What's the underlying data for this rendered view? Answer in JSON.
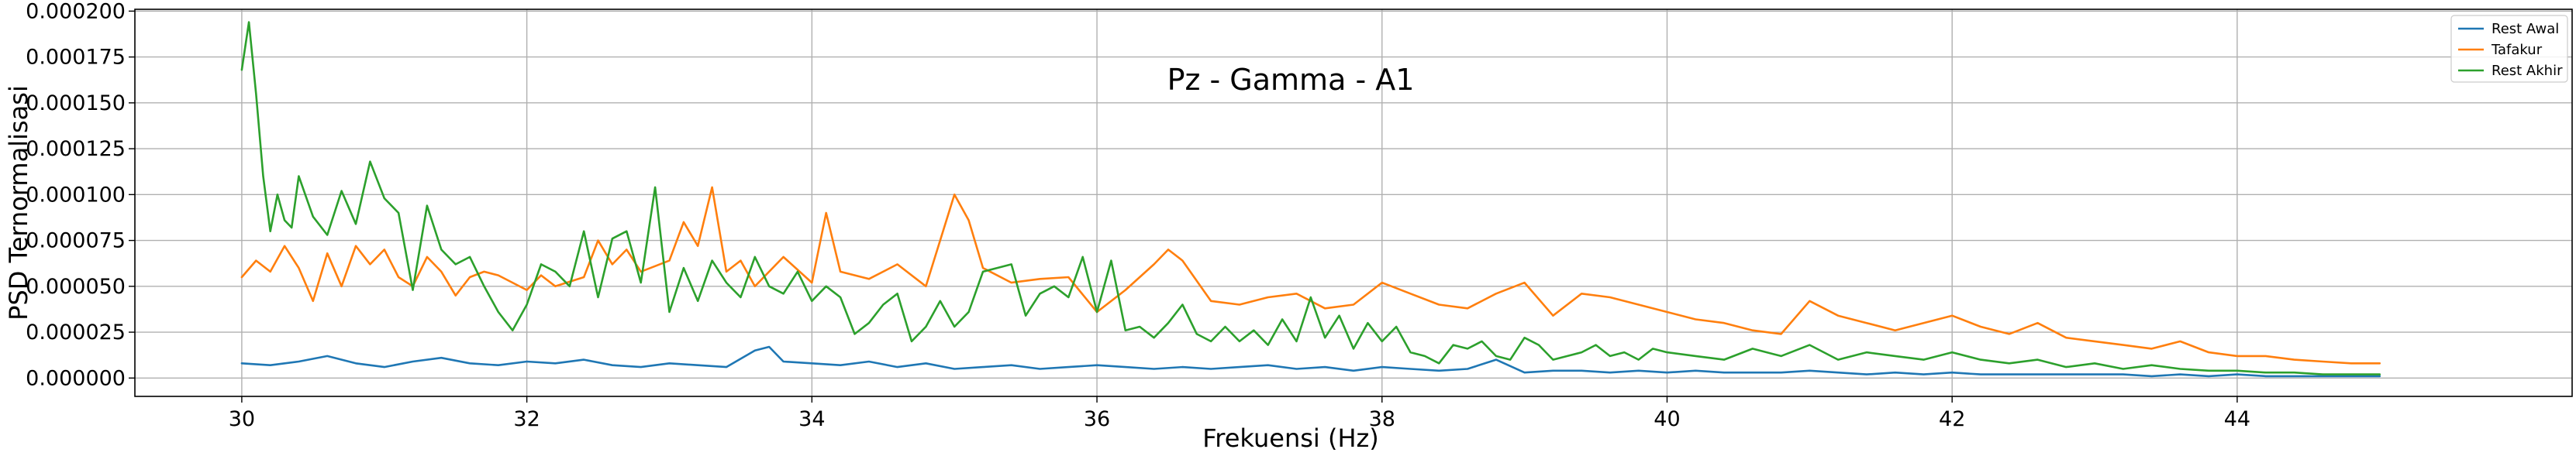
{
  "chart_data": {
    "type": "line",
    "title": "Pz - Gamma - A1",
    "xlabel": "Frekuensi (Hz)",
    "ylabel": "PSD Ternormalisasi",
    "xlim": [
      29.25,
      46.35
    ],
    "ylim": [
      -1e-05,
      0.000201
    ],
    "xticks": [
      30,
      32,
      34,
      36,
      38,
      40,
      42,
      44
    ],
    "xtick_labels": [
      "30",
      "32",
      "34",
      "36",
      "38",
      "40",
      "42",
      "44"
    ],
    "yticks": [
      0,
      2.5e-05,
      5e-05,
      7.5e-05,
      0.0001,
      0.000125,
      0.00015,
      0.000175,
      0.0002
    ],
    "ytick_labels": [
      "0.000000",
      "0.000025",
      "0.000050",
      "0.000075",
      "0.000100",
      "0.000125",
      "0.000150",
      "0.000175",
      "0.000200"
    ],
    "grid": true,
    "legend_position": "top-right",
    "series": [
      {
        "name": "Rest Awal",
        "color": "#1f77b4",
        "x": [
          30.0,
          30.2,
          30.4,
          30.6,
          30.8,
          31.0,
          31.2,
          31.4,
          31.6,
          31.8,
          32.0,
          32.2,
          32.4,
          32.6,
          32.8,
          33.0,
          33.2,
          33.4,
          33.6,
          33.7,
          33.8,
          34.0,
          34.2,
          34.4,
          34.6,
          34.8,
          35.0,
          35.2,
          35.4,
          35.6,
          35.8,
          36.0,
          36.2,
          36.4,
          36.6,
          36.8,
          37.0,
          37.2,
          37.4,
          37.6,
          37.8,
          38.0,
          38.2,
          38.4,
          38.6,
          38.8,
          39.0,
          39.2,
          39.4,
          39.6,
          39.8,
          40.0,
          40.2,
          40.4,
          40.6,
          40.8,
          41.0,
          41.2,
          41.4,
          41.6,
          41.8,
          42.0,
          42.2,
          42.4,
          42.6,
          42.8,
          43.0,
          43.2,
          43.4,
          43.6,
          43.8,
          44.0,
          44.2,
          44.4,
          44.6,
          44.8,
          45.0
        ],
        "y": [
          8e-06,
          7e-06,
          9e-06,
          1.2e-05,
          8e-06,
          6e-06,
          9e-06,
          1.1e-05,
          8e-06,
          7e-06,
          9e-06,
          8e-06,
          1e-05,
          7e-06,
          6e-06,
          8e-06,
          7e-06,
          6e-06,
          1.5e-05,
          1.7e-05,
          9e-06,
          8e-06,
          7e-06,
          9e-06,
          6e-06,
          8e-06,
          5e-06,
          6e-06,
          7e-06,
          5e-06,
          6e-06,
          7e-06,
          6e-06,
          5e-06,
          6e-06,
          5e-06,
          6e-06,
          7e-06,
          5e-06,
          6e-06,
          4e-06,
          6e-06,
          5e-06,
          4e-06,
          5e-06,
          1e-05,
          3e-06,
          4e-06,
          4e-06,
          3e-06,
          4e-06,
          3e-06,
          4e-06,
          3e-06,
          3e-06,
          3e-06,
          4e-06,
          3e-06,
          2e-06,
          3e-06,
          2e-06,
          3e-06,
          2e-06,
          2e-06,
          2e-06,
          2e-06,
          2e-06,
          2e-06,
          1e-06,
          2e-06,
          1e-06,
          2e-06,
          1e-06,
          1e-06,
          1e-06,
          1e-06,
          1e-06
        ]
      },
      {
        "name": "Tafakur",
        "color": "#ff7f0e",
        "x": [
          30.0,
          30.1,
          30.2,
          30.3,
          30.4,
          30.5,
          30.6,
          30.7,
          30.8,
          30.9,
          31.0,
          31.1,
          31.2,
          31.3,
          31.4,
          31.5,
          31.6,
          31.7,
          31.8,
          32.0,
          32.1,
          32.2,
          32.4,
          32.5,
          32.6,
          32.7,
          32.8,
          33.0,
          33.1,
          33.2,
          33.3,
          33.4,
          33.5,
          33.6,
          33.8,
          34.0,
          34.1,
          34.2,
          34.4,
          34.6,
          34.8,
          35.0,
          35.1,
          35.2,
          35.4,
          35.6,
          35.8,
          36.0,
          36.2,
          36.4,
          36.5,
          36.6,
          36.8,
          37.0,
          37.2,
          37.4,
          37.6,
          37.8,
          38.0,
          38.2,
          38.4,
          38.6,
          38.8,
          39.0,
          39.2,
          39.4,
          39.6,
          39.8,
          40.0,
          40.2,
          40.4,
          40.6,
          40.8,
          41.0,
          41.2,
          41.4,
          41.6,
          41.8,
          42.0,
          42.2,
          42.4,
          42.6,
          42.8,
          43.0,
          43.2,
          43.4,
          43.6,
          43.8,
          44.0,
          44.2,
          44.4,
          44.6,
          44.8,
          45.0
        ],
        "y": [
          5.5e-05,
          6.4e-05,
          5.8e-05,
          7.2e-05,
          6e-05,
          4.2e-05,
          6.8e-05,
          5e-05,
          7.2e-05,
          6.2e-05,
          7e-05,
          5.5e-05,
          5e-05,
          6.6e-05,
          5.8e-05,
          4.5e-05,
          5.5e-05,
          5.8e-05,
          5.6e-05,
          4.8e-05,
          5.6e-05,
          5e-05,
          5.5e-05,
          7.5e-05,
          6.2e-05,
          7e-05,
          5.8e-05,
          6.4e-05,
          8.5e-05,
          7.2e-05,
          0.000104,
          5.8e-05,
          6.4e-05,
          5e-05,
          6.6e-05,
          5.2e-05,
          9e-05,
          5.8e-05,
          5.4e-05,
          6.2e-05,
          5e-05,
          0.0001,
          8.6e-05,
          6e-05,
          5.2e-05,
          5.4e-05,
          5.5e-05,
          3.6e-05,
          4.8e-05,
          6.2e-05,
          7e-05,
          6.4e-05,
          4.2e-05,
          4e-05,
          4.4e-05,
          4.6e-05,
          3.8e-05,
          4e-05,
          5.2e-05,
          4.6e-05,
          4e-05,
          3.8e-05,
          4.6e-05,
          5.2e-05,
          3.4e-05,
          4.6e-05,
          4.4e-05,
          4e-05,
          3.6e-05,
          3.2e-05,
          3e-05,
          2.6e-05,
          2.4e-05,
          4.2e-05,
          3.4e-05,
          3e-05,
          2.6e-05,
          3e-05,
          3.4e-05,
          2.8e-05,
          2.4e-05,
          3e-05,
          2.2e-05,
          2e-05,
          1.8e-05,
          1.6e-05,
          2e-05,
          1.4e-05,
          1.2e-05,
          1.2e-05,
          1e-05,
          9e-06,
          8e-06,
          8e-06
        ]
      },
      {
        "name": "Rest Akhir",
        "color": "#2ca02c",
        "x": [
          30.0,
          30.05,
          30.1,
          30.15,
          30.2,
          30.25,
          30.3,
          30.35,
          30.4,
          30.5,
          30.6,
          30.7,
          30.8,
          30.9,
          31.0,
          31.1,
          31.2,
          31.3,
          31.4,
          31.5,
          31.6,
          31.7,
          31.8,
          31.9,
          32.0,
          32.1,
          32.2,
          32.3,
          32.4,
          32.5,
          32.6,
          32.7,
          32.8,
          32.9,
          33.0,
          33.1,
          33.2,
          33.3,
          33.4,
          33.5,
          33.6,
          33.7,
          33.8,
          33.9,
          34.0,
          34.1,
          34.2,
          34.3,
          34.4,
          34.5,
          34.6,
          34.7,
          34.8,
          34.9,
          35.0,
          35.1,
          35.2,
          35.3,
          35.4,
          35.5,
          35.6,
          35.7,
          35.8,
          35.9,
          36.0,
          36.1,
          36.2,
          36.3,
          36.4,
          36.5,
          36.6,
          36.7,
          36.8,
          36.9,
          37.0,
          37.1,
          37.2,
          37.3,
          37.4,
          37.5,
          37.6,
          37.7,
          37.8,
          37.9,
          38.0,
          38.1,
          38.2,
          38.3,
          38.4,
          38.5,
          38.6,
          38.7,
          38.8,
          38.9,
          39.0,
          39.1,
          39.2,
          39.3,
          39.4,
          39.5,
          39.6,
          39.7,
          39.8,
          39.9,
          40.0,
          40.2,
          40.4,
          40.6,
          40.8,
          41.0,
          41.2,
          41.4,
          41.6,
          41.8,
          42.0,
          42.2,
          42.4,
          42.6,
          42.8,
          43.0,
          43.2,
          43.4,
          43.6,
          43.8,
          44.0,
          44.2,
          44.4,
          44.6,
          44.8,
          45.0
        ],
        "y": [
          0.000168,
          0.000194,
          0.000155,
          0.00011,
          8e-05,
          0.0001,
          8.6e-05,
          8.2e-05,
          0.00011,
          8.8e-05,
          7.8e-05,
          0.000102,
          8.4e-05,
          0.000118,
          9.8e-05,
          9e-05,
          4.8e-05,
          9.4e-05,
          7e-05,
          6.2e-05,
          6.6e-05,
          5e-05,
          3.6e-05,
          2.6e-05,
          4e-05,
          6.2e-05,
          5.8e-05,
          5e-05,
          8e-05,
          4.4e-05,
          7.6e-05,
          8e-05,
          5.2e-05,
          0.000104,
          3.6e-05,
          6e-05,
          4.2e-05,
          6.4e-05,
          5.2e-05,
          4.4e-05,
          6.6e-05,
          5e-05,
          4.6e-05,
          5.8e-05,
          4.2e-05,
          5e-05,
          4.4e-05,
          2.4e-05,
          3e-05,
          4e-05,
          4.6e-05,
          2e-05,
          2.8e-05,
          4.2e-05,
          2.8e-05,
          3.6e-05,
          5.8e-05,
          6e-05,
          6.2e-05,
          3.4e-05,
          4.6e-05,
          5e-05,
          4.4e-05,
          6.6e-05,
          3.6e-05,
          6.4e-05,
          2.6e-05,
          2.8e-05,
          2.2e-05,
          3e-05,
          4e-05,
          2.4e-05,
          2e-05,
          2.8e-05,
          2e-05,
          2.6e-05,
          1.8e-05,
          3.2e-05,
          2e-05,
          4.4e-05,
          2.2e-05,
          3.4e-05,
          1.6e-05,
          3e-05,
          2e-05,
          2.8e-05,
          1.4e-05,
          1.2e-05,
          8e-06,
          1.8e-05,
          1.6e-05,
          2e-05,
          1.2e-05,
          1e-05,
          2.2e-05,
          1.8e-05,
          1e-05,
          1.2e-05,
          1.4e-05,
          1.8e-05,
          1.2e-05,
          1.4e-05,
          1e-05,
          1.6e-05,
          1.4e-05,
          1.2e-05,
          1e-05,
          1.6e-05,
          1.2e-05,
          1.8e-05,
          1e-05,
          1.4e-05,
          1.2e-05,
          1e-05,
          1.4e-05,
          1e-05,
          8e-06,
          1e-05,
          6e-06,
          8e-06,
          5e-06,
          7e-06,
          5e-06,
          4e-06,
          4e-06,
          3e-06,
          3e-06,
          2e-06,
          2e-06,
          2e-06
        ]
      }
    ]
  }
}
